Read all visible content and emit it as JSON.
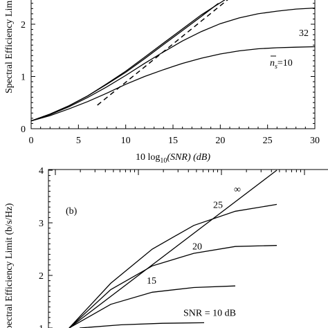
{
  "chart_data": [
    {
      "panel": "a",
      "type": "line",
      "xlabel_prefix": "10 log",
      "xlabel_sub": "10",
      "xlabel_suffix": "(SNR) (dB)",
      "ylabel": "Spectral Efficiency Limit",
      "xlim": [
        0,
        30
      ],
      "ylim": [
        0,
        2.5
      ],
      "xticks": [
        "0",
        "5",
        "10",
        "15",
        "20",
        "25",
        "30"
      ],
      "yticks": [
        "0",
        "1",
        "2"
      ],
      "series": [
        {
          "label": "n̄s=10",
          "style": "solid",
          "x": [
            0,
            2,
            4,
            6,
            8,
            10,
            12,
            14,
            16,
            18,
            20,
            22,
            24,
            26,
            28,
            30
          ],
          "y": [
            0.15,
            0.25,
            0.38,
            0.52,
            0.68,
            0.85,
            1.0,
            1.13,
            1.25,
            1.35,
            1.43,
            1.49,
            1.53,
            1.55,
            1.56,
            1.57
          ]
        },
        {
          "label": "32",
          "style": "solid",
          "x": [
            0,
            2,
            4,
            6,
            8,
            10,
            12,
            14,
            16,
            18,
            20,
            22,
            24,
            26,
            28,
            30
          ],
          "y": [
            0.15,
            0.27,
            0.42,
            0.6,
            0.8,
            1.02,
            1.25,
            1.47,
            1.68,
            1.86,
            2.01,
            2.12,
            2.2,
            2.25,
            2.29,
            2.31
          ]
        },
        {
          "label": "",
          "style": "solid",
          "x": [
            0,
            2,
            4,
            6,
            8,
            10,
            12,
            14,
            16,
            18,
            19.8
          ],
          "y": [
            0.15,
            0.28,
            0.44,
            0.63,
            0.85,
            1.08,
            1.34,
            1.61,
            1.88,
            2.15,
            2.4
          ]
        },
        {
          "label": "",
          "style": "solid",
          "x": [
            0,
            2,
            4,
            6,
            8,
            10,
            12,
            14,
            16,
            18,
            20.6
          ],
          "y": [
            0.15,
            0.28,
            0.44,
            0.63,
            0.86,
            1.1,
            1.37,
            1.64,
            1.91,
            2.18,
            2.48
          ]
        },
        {
          "label": "",
          "style": "dashed",
          "x": [
            7,
            21
          ],
          "y": [
            0.45,
            2.5
          ]
        }
      ],
      "annotations": {
        "n_symbol": "n",
        "n_sub": "s",
        "n_value": "=10",
        "mid": "32"
      }
    },
    {
      "panel": "b",
      "type": "line",
      "panel_label": "(b)",
      "ylabel": "Spectral Efficiency Limit (b/s/Hz)",
      "ylim": [
        1,
        4
      ],
      "yticks": [
        "1",
        "2",
        "3",
        "4"
      ],
      "series": [
        {
          "label": "∞",
          "x": [
            1.0,
            3.0
          ],
          "y": [
            1.0,
            4.0
          ]
        },
        {
          "label": "25",
          "x": [
            1.0,
            1.4,
            1.8,
            2.2,
            2.6,
            3.0
          ],
          "y": [
            1.0,
            1.85,
            2.5,
            2.95,
            3.22,
            3.35
          ]
        },
        {
          "label": "20",
          "x": [
            1.0,
            1.4,
            1.8,
            2.2,
            2.6,
            3.0
          ],
          "y": [
            1.0,
            1.73,
            2.18,
            2.42,
            2.55,
            2.57
          ]
        },
        {
          "label": "15",
          "x": [
            1.0,
            1.4,
            1.8,
            2.2,
            2.6
          ],
          "y": [
            1.0,
            1.45,
            1.68,
            1.77,
            1.8
          ]
        },
        {
          "label": "SNR = 10 dB",
          "x": [
            1.1,
            1.5,
            1.9,
            2.3
          ],
          "y": [
            1.0,
            1.06,
            1.09,
            1.1
          ]
        }
      ]
    }
  ]
}
